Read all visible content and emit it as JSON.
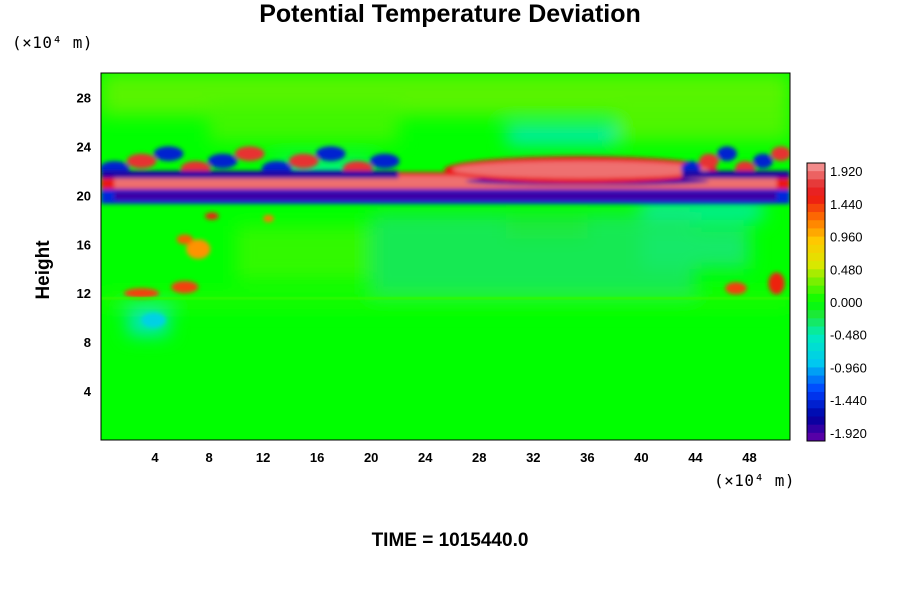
{
  "chart_data": {
    "type": "heatmap",
    "title": "Potential Temperature Deviation",
    "ylabel": "Height",
    "xlabel": "",
    "y_unit": "(×10⁴ m)",
    "x_unit": "(×10⁴ m)",
    "xlim": [
      0,
      51
    ],
    "ylim": [
      0,
      30
    ],
    "x_ticks": [
      "4",
      "8",
      "12",
      "16",
      "20",
      "24",
      "28",
      "32",
      "36",
      "40",
      "44",
      "48"
    ],
    "y_ticks": [
      "4",
      "8",
      "12",
      "16",
      "20",
      "24",
      "28"
    ],
    "colorbar": {
      "min": -2.04,
      "max": 2.04,
      "levels": 34,
      "labels": [
        "1.920",
        "1.440",
        "0.960",
        "0.480",
        "0.000",
        "-0.480",
        "-0.960",
        "-1.440",
        "-1.920"
      ]
    },
    "features": [
      {
        "name": "positive band",
        "x": [
          1,
          50
        ],
        "y": [
          20.6,
          21.6
        ],
        "value": 1.9
      },
      {
        "name": "negative band",
        "x": [
          1,
          50
        ],
        "y": [
          19.6,
          20.3
        ],
        "value": -1.9
      },
      {
        "name": "central negative core",
        "x": [
          27,
          45
        ],
        "y": [
          20.8,
          21.5
        ],
        "value": -1.9
      },
      {
        "name": "central positive cap",
        "x": [
          26,
          45
        ],
        "y": [
          21.4,
          22.8
        ],
        "value": 1.9
      },
      {
        "name": "left wave region",
        "x": [
          0,
          22
        ],
        "y": [
          21.4,
          24.4
        ],
        "value": -1.5
      },
      {
        "name": "right wave region",
        "x": [
          43,
          51
        ],
        "y": [
          21.4,
          24.4
        ],
        "value": -1.5
      },
      {
        "name": "warm patches left",
        "x": [
          1,
          9
        ],
        "y": [
          11.4,
          18.6
        ],
        "value": 1.4
      },
      {
        "name": "warm patches right",
        "x": [
          45,
          51
        ],
        "y": [
          11.8,
          13.6
        ],
        "value": 1.4
      },
      {
        "name": "cool patch",
        "x": [
          3,
          5
        ],
        "y": [
          9.2,
          10.6
        ],
        "value": -0.8
      }
    ]
  },
  "footer": {
    "time_label": "TIME = 1015440.0"
  }
}
